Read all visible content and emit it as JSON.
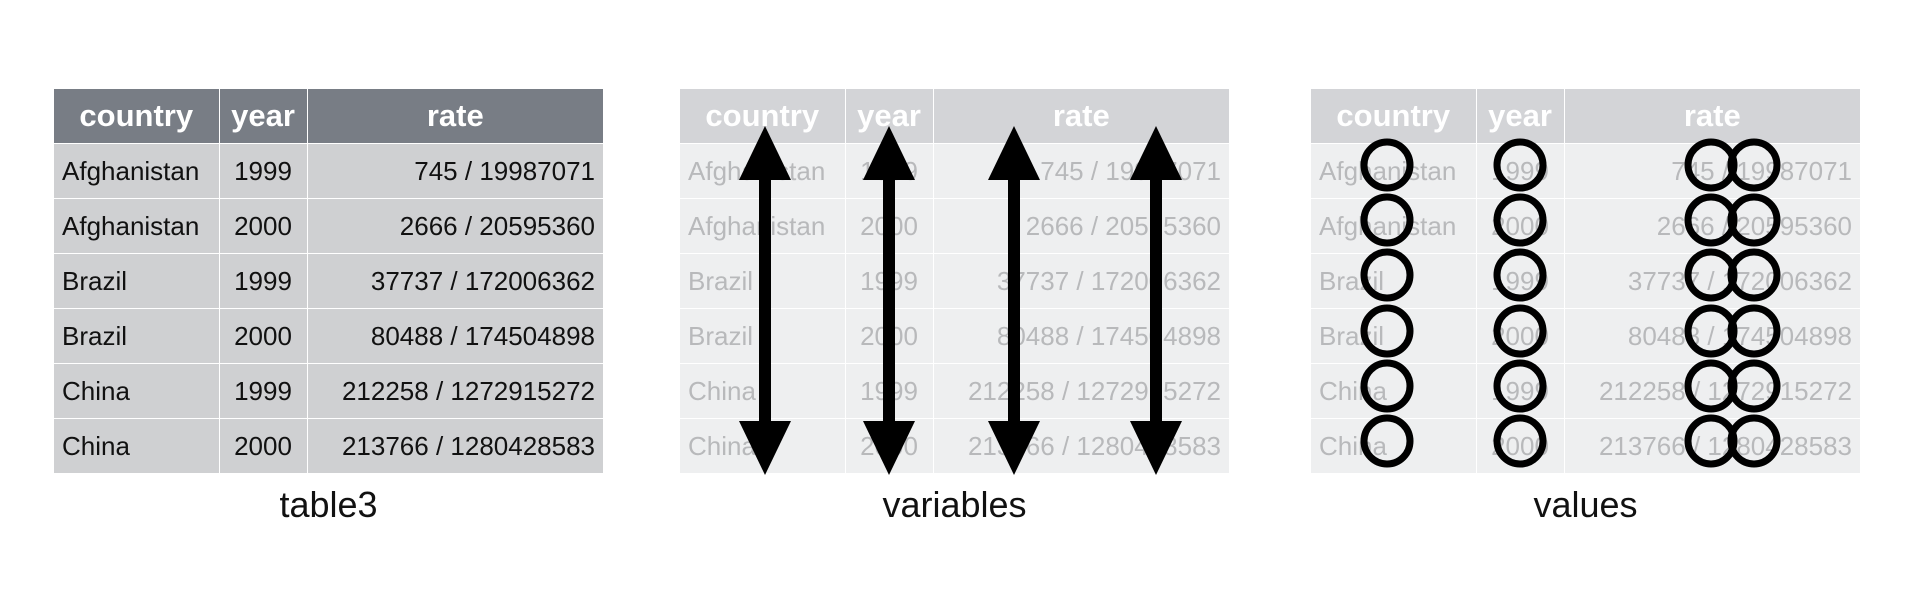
{
  "table3": {
    "headers": [
      "country",
      "year",
      "rate"
    ],
    "rows": [
      [
        "Afghanistan",
        "1999",
        "745 / 19987071"
      ],
      [
        "Afghanistan",
        "2000",
        "2666 / 20595360"
      ],
      [
        "Brazil",
        "1999",
        "37737 / 172006362"
      ],
      [
        "Brazil",
        "2000",
        "80488 / 174504898"
      ],
      [
        "China",
        "1999",
        "212258 / 1272915272"
      ],
      [
        "China",
        "2000",
        "213766 / 1280428583"
      ]
    ]
  },
  "captions": {
    "table3": "table3",
    "variables": "variables",
    "values": "values"
  },
  "colors": {
    "header_dark": "#787d85",
    "body_dark": "#cfd0d2",
    "header_faded": "#d3d4d7",
    "body_faded": "#eeeff0",
    "mark": "#000000"
  },
  "icons": {
    "variables": "double-headed-arrow-icon",
    "values": "circle-icon",
    "rate_values": "double-circle-icon"
  }
}
